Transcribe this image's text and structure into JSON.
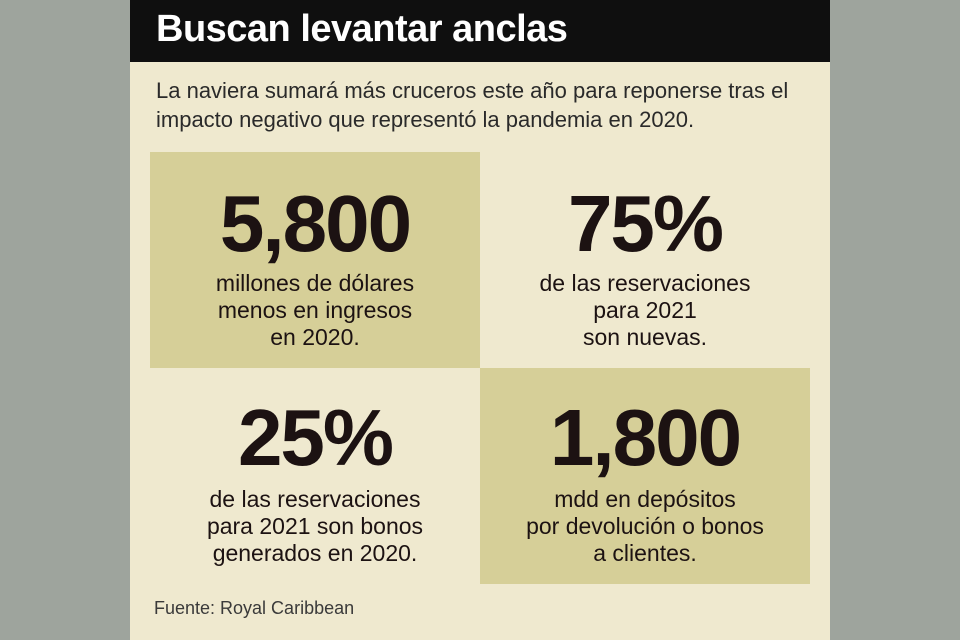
{
  "title": "Buscan levantar anclas",
  "subtitle": "La naviera sumará más cruceros este año para reponerse tras el impacto negativo que representó la pandemia en 2020.",
  "stats": [
    {
      "value": "5,800",
      "description": "millones de dólares\nmenos en ingresos\nen 2020."
    },
    {
      "value": "75%",
      "description": "de las reservaciones\npara 2021\nson nuevas."
    },
    {
      "value": "25%",
      "description": "de las reservaciones\npara 2021 son bonos\ngenerados en 2020."
    },
    {
      "value": "1,800",
      "description": "mdd en depósitos\npor devolución o bonos\na clientes."
    }
  ],
  "source": "Fuente: Royal Caribbean",
  "colors": {
    "header": "#0f0f0f",
    "panel": "#efe9cf",
    "highlight": "#d6cf98",
    "text": "#1c1212",
    "background": "#9ea49d"
  }
}
